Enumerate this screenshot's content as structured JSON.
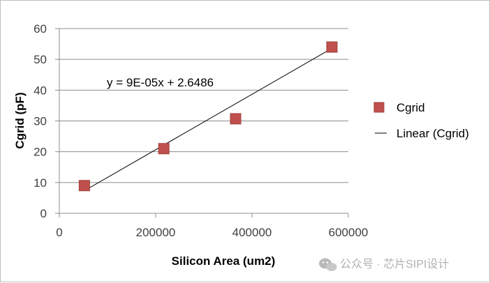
{
  "chart_data": {
    "type": "scatter",
    "xlabel": "Silicon Area (um2)",
    "ylabel": "Cgrid (pF)",
    "xlim": [
      0,
      600000
    ],
    "ylim": [
      0,
      60
    ],
    "xticks": [
      "0",
      "200000",
      "400000",
      "600000"
    ],
    "yticks": [
      "0",
      "10",
      "20",
      "30",
      "40",
      "50",
      "60"
    ],
    "grid": "horizontal",
    "legend_position": "right",
    "series": [
      {
        "name": "Cgrid",
        "color": "#c0504d",
        "points": [
          {
            "x": 52000,
            "y": 9
          },
          {
            "x": 217000,
            "y": 21
          },
          {
            "x": 366000,
            "y": 30.7
          },
          {
            "x": 566000,
            "y": 54
          }
        ]
      }
    ],
    "trendline": {
      "name": "Linear (Cgrid)",
      "slope": 9e-05,
      "intercept": 2.6486,
      "x_range": [
        52000,
        566000
      ],
      "equation": "y = 9E-05x + 2.6486"
    }
  },
  "watermark": {
    "text": "公众号 · 芯片SIPI设计",
    "icon": "wechat-icon"
  }
}
